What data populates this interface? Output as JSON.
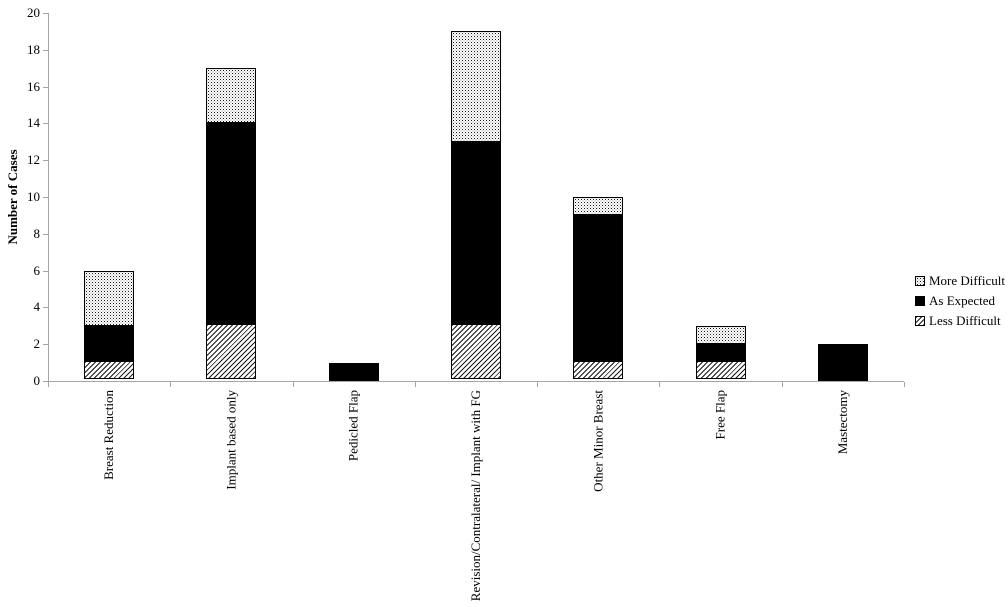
{
  "chart_data": {
    "type": "bar",
    "stacked": true,
    "ylabel": "Number of Cases",
    "xlabel": "",
    "ylim": [
      0,
      20
    ],
    "ytick_step": 2,
    "grid": false,
    "legend_position": "right",
    "categories": [
      "Breast Reduction",
      "Implant based only",
      "Pedicled Flap",
      "Revision/Contralateral/ Implant with FG",
      "Other Minor Breast",
      "Free Flap",
      "Mastectomy"
    ],
    "series": [
      {
        "name": "Less Difficult",
        "pattern": "diagonal-hatch",
        "color": "#ffffff",
        "values": [
          1,
          3,
          0,
          3,
          1,
          1,
          0
        ]
      },
      {
        "name": "As Expected",
        "pattern": "solid",
        "color": "#000000",
        "values": [
          2,
          11,
          1,
          10,
          8,
          1,
          2
        ]
      },
      {
        "name": "More Difficult",
        "pattern": "dots",
        "color": "#ffffff",
        "values": [
          3,
          3,
          0,
          6,
          1,
          1,
          0
        ]
      }
    ]
  },
  "colors": {
    "axis": "#a6a6a6",
    "text": "#000000",
    "background": "#ffffff"
  }
}
